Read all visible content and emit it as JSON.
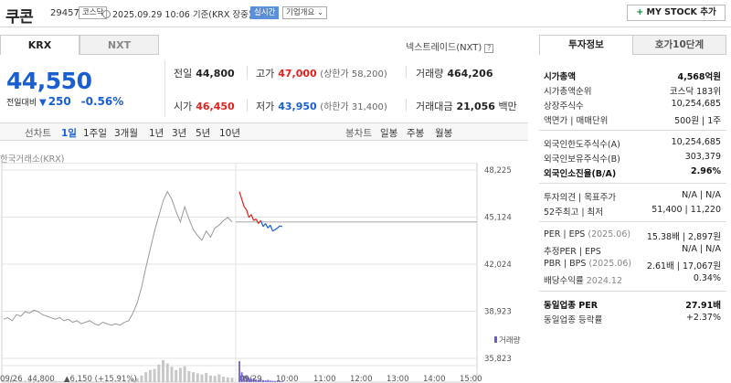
{
  "header": {
    "name": "쿠콘",
    "code": "294570",
    "market_badge": "코스닥",
    "time": "2025.09.29 10:06",
    "time_suffix": "기준(KRX 장중)",
    "live_badge": "실시간",
    "overview_badge": "기업개요",
    "overview_arrow": "⌄",
    "mystock_plus": "+",
    "mystock_label": "MY STOCK 추가"
  },
  "market_tabs": [
    "KRX",
    "NXT"
  ],
  "nxt_link": "넥스트레이드(NXT)",
  "help_mark": "?",
  "quote": {
    "price": "44,550",
    "change_label": "전일대비",
    "change_arrow": "▼",
    "change": "250",
    "change_pct": "-0.56%"
  },
  "stats": {
    "prev_close_label": "전일",
    "prev_close": "44,800",
    "high_label": "고가",
    "high": "47,000",
    "upper_limit": "(상한가 58,200)",
    "volume_label": "거래량",
    "volume": "464,206",
    "open_label": "시가",
    "open": "46,450",
    "low_label": "저가",
    "low": "43,950",
    "lower_limit": "(하한가 31,400)",
    "amount_label": "거래대금",
    "amount": "21,056",
    "amount_unit": "백만"
  },
  "chart_toolbar": {
    "line_chart": "선차트",
    "periods": [
      "1일",
      "1주일",
      "3개월",
      "1년",
      "3년",
      "5년",
      "10년"
    ],
    "candle_chart": "봉차트",
    "candle_periods": [
      "일봉",
      "주봉",
      "월봉"
    ]
  },
  "chart_source": "한국거래소(KRX)",
  "chart_data": {
    "type": "line",
    "y_ticks": [
      48225,
      45124,
      42024,
      38923,
      35823
    ],
    "y_tick_labels": [
      "48,225",
      "45,124",
      "42,024",
      "38,923",
      "35,823"
    ],
    "ylim": [
      35823,
      48225
    ],
    "reference_price": 44800,
    "volume_legend": "거래량",
    "x_labels": [
      "09/26",
      "09/29",
      "10:00",
      "11:00",
      "12:00",
      "13:00",
      "14:00",
      "15:00"
    ],
    "prev_day_series": [
      38400,
      38500,
      38300,
      38700,
      38600,
      38900,
      38800,
      39000,
      38900,
      38700,
      38600,
      38500,
      38400,
      38500,
      38300,
      38400,
      38200,
      38300,
      38100,
      38200,
      38300,
      38100,
      38000,
      38200,
      38100,
      38000,
      38100,
      38000,
      38200,
      38300,
      38800,
      39500,
      40500,
      41800,
      43000,
      44200,
      45200,
      46200,
      46800,
      46300,
      45500,
      44800,
      45800,
      45000,
      44300,
      43900,
      43600,
      44200,
      43800,
      44400,
      44600,
      44900,
      45100,
      44800
    ],
    "today_series": [
      46800,
      46300,
      45800,
      45600,
      45100,
      45300,
      44900,
      45000,
      44700,
      44900,
      44500,
      44700,
      44400,
      44600,
      44200,
      44300,
      44400,
      44550,
      44500
    ],
    "prev_day_volume": [
      0.08,
      0.06,
      0.1,
      0.05,
      0.07,
      0.06,
      0.09,
      0.05,
      0.06,
      0.04,
      0.05,
      0.07,
      0.05,
      0.04,
      0.06,
      0.05,
      0.04,
      0.05,
      0.06,
      0.04,
      0.05,
      0.03,
      0.04,
      0.05,
      0.04,
      0.03,
      0.05,
      0.04,
      0.05,
      0.06,
      0.12,
      0.18,
      0.3,
      0.45,
      0.55,
      0.6,
      0.8,
      1.0,
      0.85,
      0.7,
      0.55,
      0.65,
      0.72,
      0.5,
      0.45,
      0.4,
      0.35,
      0.42,
      0.3,
      0.28,
      0.35,
      0.25,
      0.22,
      0.2
    ],
    "today_volume": [
      0.95,
      0.45,
      0.3,
      0.28,
      0.2,
      0.15,
      0.18,
      0.12,
      0.1,
      0.14,
      0.09,
      0.08,
      0.1,
      0.07,
      0.06,
      0.05,
      0.05,
      0.04,
      0.04
    ],
    "footer_prev": "44,800",
    "footer_change": "▲6,150 (+15.91%)"
  },
  "invest_tabs": [
    "투자정보",
    "호가10단계"
  ],
  "invest": {
    "market_cap_label": "시가총액",
    "market_cap": "4,568억원",
    "rank_label": "시가총액순위",
    "rank": "코스닥 183위",
    "shares_label": "상장주식수",
    "shares": "10,254,685",
    "par_label": "액면가 | 매매단위",
    "par": "500원 | 1주",
    "foreign_limit_label": "외국인한도주식수(A)",
    "foreign_limit": "10,254,685",
    "foreign_hold_label": "외국인보유주식수(B)",
    "foreign_hold": "303,379",
    "foreign_ratio_label": "외국인소진율(B/A)",
    "foreign_ratio": "2.96%",
    "opinion_label": "투자의견 | 목표주가",
    "opinion": "N/A | N/A",
    "week52_label": "52주최고 | 최저",
    "week52": "51,400 | 11,220",
    "per_label": "PER | EPS",
    "per_period": "(2025.06)",
    "per": "15.38배 | 2,897원",
    "est_per_label": "추정PER | EPS",
    "est_per": "N/A | N/A",
    "pbr_label": "PBR | BPS",
    "pbr_period": "(2025.06)",
    "pbr": "2.61배 | 17,067원",
    "div_label": "배당수익률",
    "div_period": "2024.12",
    "div": "0.34%",
    "sector_per_label": "동일업종 PER",
    "sector_per": "27.91배",
    "sector_rate_label": "동일업종 등락률",
    "sector_rate": "+2.37%"
  }
}
